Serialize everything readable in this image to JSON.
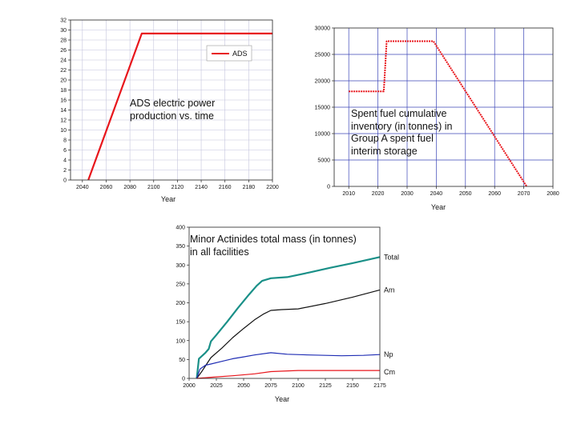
{
  "chart_data": [
    {
      "type": "line",
      "title": "ADS electric power production vs. time",
      "xlabel": "Year",
      "ylabel": "",
      "xlim": [
        2030,
        2200
      ],
      "ylim": [
        0,
        32
      ],
      "xticks": [
        "2040",
        "2060",
        "2080",
        "2100",
        "2120",
        "2140",
        "2160",
        "2180",
        "2200"
      ],
      "yticks": [
        "0",
        "2",
        "4",
        "6",
        "8",
        "10",
        "12",
        "14",
        "16",
        "18",
        "20",
        "22",
        "24",
        "26",
        "28",
        "30",
        "32"
      ],
      "grid": true,
      "legend": {
        "position": "top-right",
        "entries": [
          "ADS"
        ]
      },
      "series": [
        {
          "name": "ADS",
          "color": "#e8161c",
          "x": [
            2045,
            2090,
            2200
          ],
          "y": [
            0,
            29.3,
            29.3
          ]
        }
      ]
    },
    {
      "type": "line",
      "title": "Spent fuel cumulative inventory (in tonnes) in Group A spent fuel interim storage",
      "xlabel": "Year",
      "ylabel": "",
      "xlim": [
        2005,
        2080
      ],
      "ylim": [
        0,
        30000
      ],
      "xticks": [
        "2010",
        "2020",
        "2030",
        "2040",
        "2050",
        "2060",
        "2070",
        "2080"
      ],
      "yticks": [
        "0",
        "5000",
        "10000",
        "15000",
        "20000",
        "25000",
        "30000"
      ],
      "grid": true,
      "series": [
        {
          "name": "Group A spent fuel",
          "color": "#e8161c",
          "x": [
            2010,
            2022,
            2023,
            2039,
            2071
          ],
          "y": [
            18000,
            18000,
            27500,
            27500,
            0
          ]
        }
      ]
    },
    {
      "type": "line",
      "title": "Minor Actinides total mass (in tonnes) in all facilities",
      "xlabel": "Year",
      "ylabel": "",
      "xlim": [
        2000,
        2175
      ],
      "ylim": [
        0,
        400
      ],
      "xticks": [
        "2000",
        "2025",
        "2050",
        "2075",
        "2100",
        "2125",
        "2150",
        "2175"
      ],
      "yticks": [
        "0",
        "50",
        "100",
        "150",
        "200",
        "250",
        "300",
        "350",
        "400"
      ],
      "grid": false,
      "series": [
        {
          "name": "Total",
          "color": "#1a9088",
          "x": [
            2007,
            2009,
            2012,
            2015,
            2018,
            2020,
            2025,
            2035,
            2045,
            2055,
            2062,
            2067,
            2075,
            2090,
            2110,
            2130,
            2150,
            2175
          ],
          "y": [
            0,
            52,
            60,
            68,
            78,
            98,
            115,
            150,
            187,
            222,
            245,
            258,
            265,
            268,
            280,
            293,
            305,
            321
          ]
        },
        {
          "name": "Am",
          "color": "#111111",
          "x": [
            2007,
            2012,
            2020,
            2030,
            2040,
            2050,
            2060,
            2068,
            2075,
            2085,
            2100,
            2125,
            2150,
            2175
          ],
          "y": [
            0,
            20,
            55,
            80,
            108,
            132,
            155,
            170,
            180,
            182,
            184,
            198,
            215,
            234
          ]
        },
        {
          "name": "Np",
          "color": "#1f2db4",
          "x": [
            2007,
            2010,
            2015,
            2020,
            2030,
            2040,
            2050,
            2060,
            2075,
            2090,
            2110,
            2140,
            2160,
            2175
          ],
          "y": [
            0,
            25,
            35,
            38,
            45,
            52,
            57,
            62,
            68,
            64,
            62,
            60,
            61,
            63
          ]
        },
        {
          "name": "Cm",
          "color": "#e8161c",
          "x": [
            2007,
            2020,
            2040,
            2060,
            2075,
            2100,
            2125,
            2150,
            2175
          ],
          "y": [
            0,
            3,
            7,
            12,
            18,
            21,
            21,
            21,
            21
          ]
        }
      ]
    }
  ],
  "captions": {
    "ads": "ADS electric power production vs. time",
    "spent": "Spent fuel cumulative inventory (in tonnes) in Group A spent fuel interim storage",
    "ma": "Minor Actinides total mass (in tonnes) in all facilities"
  },
  "colors": {
    "grid": "#c4c4dd",
    "spent_grid": "#3d46b8",
    "axis": "#222222"
  }
}
